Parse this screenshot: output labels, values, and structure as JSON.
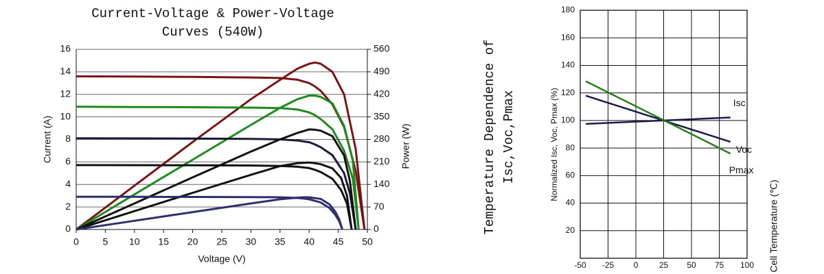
{
  "chart_data": [
    {
      "type": "line",
      "title": [
        "Current-Voltage & Power-Voltage",
        "Curves (540W)"
      ],
      "x_label": "Voltage (V)",
      "y_label": "Current (A)",
      "y2_label": "Power (W)",
      "xlim": [
        0,
        50
      ],
      "xticks": [
        0,
        5,
        10,
        15,
        20,
        25,
        30,
        35,
        40,
        45,
        50
      ],
      "ylim": [
        0,
        16
      ],
      "yticks": [
        0,
        2,
        4,
        6,
        8,
        10,
        12,
        14,
        16
      ],
      "y2lim": [
        0,
        560
      ],
      "y2ticks": [
        0,
        70,
        140,
        210,
        280,
        350,
        420,
        490,
        560
      ],
      "grid": true,
      "series": [
        {
          "color": "#7a1414",
          "x": [
            0,
            10,
            20,
            30,
            35,
            38,
            40,
            41,
            42,
            44,
            46,
            48,
            49.5
          ],
          "values": [
            13.6,
            13.58,
            13.55,
            13.5,
            13.45,
            13.3,
            13.0,
            12.7,
            12.3,
            11.1,
            9.1,
            5.2,
            0
          ]
        },
        {
          "color": "#7a1414",
          "axis": "y2",
          "x": [
            0,
            10,
            20,
            30,
            35,
            38,
            40,
            41,
            42,
            44,
            46,
            48,
            49.5
          ],
          "values": [
            0,
            136,
            272,
            405,
            465,
            500,
            515,
            519,
            515,
            490,
            420,
            250,
            0
          ]
        },
        {
          "color": "#1e8a1e",
          "x": [
            0,
            10,
            20,
            30,
            35,
            38,
            40,
            41,
            42,
            44,
            46,
            47.5,
            48.5
          ],
          "values": [
            10.9,
            10.88,
            10.86,
            10.82,
            10.78,
            10.65,
            10.4,
            10.15,
            9.8,
            8.9,
            7,
            4.5,
            0
          ]
        },
        {
          "color": "#1e8a1e",
          "axis": "y2",
          "x": [
            0,
            10,
            20,
            30,
            35,
            38,
            40,
            41,
            42,
            44,
            46,
            47.5,
            48.5
          ],
          "values": [
            0,
            109,
            217,
            325,
            378,
            405,
            416,
            416,
            412,
            392,
            322,
            214,
            0
          ]
        },
        {
          "color": "#1a1a3a",
          "x": [
            0,
            10,
            20,
            30,
            35,
            38,
            40,
            41,
            42,
            44,
            46,
            47,
            48
          ],
          "values": [
            8.1,
            8.09,
            8.08,
            8.05,
            8.0,
            7.9,
            7.75,
            7.55,
            7.3,
            6.6,
            5.0,
            3.2,
            0
          ]
        },
        {
          "color": "#111111",
          "axis": "y2",
          "x": [
            0,
            10,
            20,
            30,
            35,
            38,
            40,
            41,
            42,
            44,
            46,
            47,
            48
          ],
          "values": [
            0,
            81,
            162,
            242,
            280,
            300,
            311,
            310,
            307,
            290,
            230,
            150,
            0
          ]
        },
        {
          "color": "#111111",
          "x": [
            0,
            10,
            20,
            30,
            35,
            38,
            40,
            41,
            42,
            44,
            45.5,
            46.5,
            47.3
          ],
          "values": [
            5.72,
            5.71,
            5.7,
            5.68,
            5.64,
            5.57,
            5.45,
            5.3,
            5.1,
            4.5,
            3.5,
            2.3,
            0
          ]
        },
        {
          "color": "#111111",
          "axis": "y2",
          "x": [
            0,
            10,
            20,
            30,
            35,
            38,
            40,
            41,
            42,
            44,
            45.5,
            46.5,
            47.3
          ],
          "values": [
            0,
            57,
            114,
            170,
            197,
            206,
            208,
            206,
            203,
            190,
            160,
            105,
            0
          ]
        },
        {
          "color": "#2e2e6e",
          "x": [
            0,
            10,
            20,
            30,
            35,
            38,
            39,
            40,
            42,
            43.5,
            44.5,
            45.2,
            45.7
          ],
          "values": [
            2.9,
            2.9,
            2.89,
            2.88,
            2.86,
            2.8,
            2.75,
            2.68,
            2.4,
            1.9,
            1.3,
            0.7,
            0
          ]
        },
        {
          "color": "#2e2e6e",
          "axis": "y2",
          "x": [
            0,
            10,
            20,
            30,
            35,
            38,
            39,
            40,
            42,
            43.5,
            44.5,
            45.2,
            45.7
          ],
          "values": [
            0,
            27,
            54,
            81,
            94,
            99,
            100,
            100,
            95,
            78,
            55,
            30,
            0
          ]
        }
      ]
    },
    {
      "type": "line",
      "title": [
        "Temperature Dependence of",
        "Isc,Voc,Pmax"
      ],
      "x_label": "Cell Temperature (℃)",
      "y_label": "Normalized Isc, Voc, Pmax (%)",
      "xlim": [
        -50,
        100
      ],
      "xticks": [
        -50,
        -25,
        0,
        25,
        50,
        75,
        100
      ],
      "ylim": [
        0,
        180
      ],
      "yticks": [
        20,
        40,
        60,
        80,
        100,
        120,
        140,
        160,
        180
      ],
      "grid": true,
      "series": [
        {
          "name": "Isc",
          "color": "#1a1a4a",
          "x": [
            -45,
            85
          ],
          "values": [
            97.5,
            102.2
          ]
        },
        {
          "name": "Voc",
          "color": "#1a1a4a",
          "x": [
            -45,
            85
          ],
          "values": [
            118,
            84.5
          ]
        },
        {
          "name": "Pmax",
          "color": "#2a7a1e",
          "x": [
            -45,
            85
          ],
          "values": [
            128.5,
            76
          ]
        }
      ]
    }
  ]
}
